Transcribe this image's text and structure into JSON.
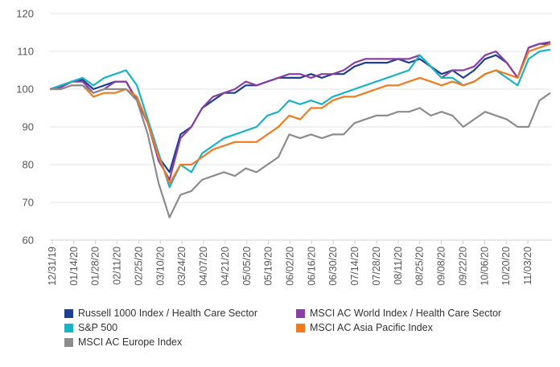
{
  "chart_data": {
    "type": "line",
    "title": "",
    "xlabel": "",
    "ylabel": "",
    "ylim": [
      60,
      120
    ],
    "y_ticks": [
      60,
      70,
      80,
      90,
      100,
      110,
      120
    ],
    "x_tick_labels": [
      "12/31/19",
      "01/14/20",
      "01/28/20",
      "02/11/20",
      "02/25/20",
      "03/10/20",
      "03/24/20",
      "04/07/20",
      "04/21/20",
      "05/05/20",
      "05/19/20",
      "06/02/20",
      "06/16/20",
      "06/30/20",
      "07/14/20",
      "07/28/20",
      "08/11/20",
      "08/25/20",
      "09/08/20",
      "09/22/20",
      "10/06/20",
      "10/20/20",
      "11/03/20"
    ],
    "grid": "horizontal",
    "legend_position": "bottom",
    "x": [
      "12/31/19",
      "01/07/20",
      "01/14/20",
      "01/21/20",
      "01/28/20",
      "02/04/20",
      "02/11/20",
      "02/18/20",
      "02/25/20",
      "03/03/20",
      "03/10/20",
      "03/17/20",
      "03/24/20",
      "03/31/20",
      "04/07/20",
      "04/14/20",
      "04/21/20",
      "04/28/20",
      "05/05/20",
      "05/12/20",
      "05/19/20",
      "05/26/20",
      "06/02/20",
      "06/09/20",
      "06/16/20",
      "06/23/20",
      "06/30/20",
      "07/07/20",
      "07/14/20",
      "07/21/20",
      "07/28/20",
      "08/04/20",
      "08/11/20",
      "08/18/20",
      "08/25/20",
      "09/01/20",
      "09/08/20",
      "09/15/20",
      "09/22/20",
      "09/29/20",
      "10/06/20",
      "10/13/20",
      "10/20/20",
      "10/27/20",
      "11/03/20",
      "11/10/20",
      "11/13/20"
    ],
    "series": [
      {
        "name": "Russell 1000 Index / Health Care Sector",
        "color": "#1f3f8f",
        "values": [
          100,
          100.5,
          102,
          102.5,
          100,
          101,
          102,
          102,
          97,
          91,
          82,
          78,
          88,
          90,
          95,
          97,
          99,
          99,
          101,
          101,
          102,
          103,
          103,
          103,
          104,
          103,
          104,
          104,
          106,
          107,
          107,
          107,
          108,
          107,
          108,
          106,
          104,
          105,
          103,
          105,
          108,
          109,
          107,
          103,
          111,
          112,
          112
        ]
      },
      {
        "name": "MSCI AC World Index / Health Care Sector",
        "color": "#8a3fa3",
        "values": [
          100,
          100.5,
          102,
          102,
          99,
          100,
          102,
          102,
          97,
          91,
          81,
          76,
          87,
          90,
          95,
          98,
          99,
          100,
          102,
          101,
          102,
          103,
          104,
          104,
          103,
          104,
          104,
          105,
          107,
          108,
          108,
          108,
          108,
          108,
          109,
          106,
          103,
          105,
          105,
          106,
          109,
          110,
          107,
          103,
          111,
          112,
          112.5
        ]
      },
      {
        "name": "S&P 500",
        "color": "#1ab3c6",
        "values": [
          100,
          101,
          102,
          103,
          101,
          103,
          104,
          105,
          101,
          92,
          83,
          74,
          80,
          78,
          83,
          85,
          87,
          88,
          89,
          90,
          93,
          94,
          97,
          96,
          97,
          96,
          98,
          99,
          100,
          101,
          102,
          103,
          104,
          105,
          109,
          106,
          103,
          103,
          101,
          102,
          104,
          105,
          103,
          101,
          108,
          110,
          110.5
        ]
      },
      {
        "name": "MSCI AC Asia Pacific Index",
        "color": "#f07a1e",
        "values": [
          100,
          100,
          101,
          101,
          98,
          99,
          99,
          100,
          98,
          91,
          82,
          75,
          80,
          80,
          82,
          84,
          85,
          86,
          86,
          86,
          88,
          90,
          93,
          92,
          95,
          95,
          97,
          98,
          98,
          99,
          100,
          101,
          101,
          102,
          103,
          102,
          101,
          102,
          101,
          102,
          104,
          105,
          104,
          103,
          110,
          111,
          112
        ]
      },
      {
        "name": "MSCI AC Europe Index",
        "color": "#8c8c8c",
        "values": [
          100,
          100,
          101,
          101,
          99,
          100,
          100,
          100,
          97,
          88,
          75,
          66,
          72,
          73,
          76,
          77,
          78,
          77,
          79,
          78,
          80,
          82,
          88,
          87,
          88,
          87,
          88,
          88,
          91,
          92,
          93,
          93,
          94,
          94,
          95,
          93,
          94,
          93,
          90,
          92,
          94,
          93,
          92,
          90,
          90,
          97,
          99
        ]
      }
    ]
  }
}
